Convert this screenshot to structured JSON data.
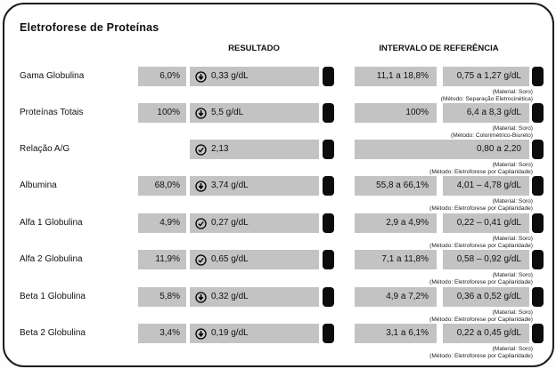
{
  "title": "Eletroforese de Proteínas",
  "columns": {
    "result": "RESULTADO",
    "reference": "INTERVALO DE REFERÊNCIA"
  },
  "colors": {
    "bar_gray": "#c3c3c3",
    "marker_black": "#0c0c0c",
    "card_border": "#1c1c1c"
  },
  "rows": [
    {
      "label": "Gama Globulina",
      "result_percent": "6,0%",
      "result_icon": "down-arrow-circle-icon",
      "result_value": "0,33 g/dL",
      "ref_percent": "11,1 a 18,8%",
      "ref_value": "0,75 a 1,27 g/dL",
      "material": "(Material: Soro)",
      "method": "(Método: Separação Eletrocinética)"
    },
    {
      "label": "Proteínas Totais",
      "result_percent": "100%",
      "result_icon": "down-arrow-circle-icon",
      "result_value": "5,5 g/dL",
      "ref_percent": "100%",
      "ref_value": "6,4 a 8,3 g/dL",
      "material": "(Material: Soro)",
      "method": "(Método: Colorimétrico-Biureto)"
    },
    {
      "label": "Relação A/G",
      "result_percent": null,
      "result_icon": "check-circle-icon",
      "result_value": "2,13",
      "ref_percent": null,
      "ref_value": "0,80 a 2,20",
      "material": "(Material: Soro)",
      "method": "(Método: Eletroforese por Capilaridade)"
    },
    {
      "label": "Albumina",
      "result_percent": "68,0%",
      "result_icon": "down-arrow-circle-icon",
      "result_value": "3,74 g/dL",
      "ref_percent": "55,8 a 66,1%",
      "ref_value": "4,01 – 4,78 g/dL",
      "material": "(Material: Soro)",
      "method": "(Método: Eletroforese por Capilaridade)"
    },
    {
      "label": "Alfa 1 Globulina",
      "result_percent": "4,9%",
      "result_icon": "check-circle-icon",
      "result_value": "0,27 g/dL",
      "ref_percent": "2,9 a 4,9%",
      "ref_value": "0,22 – 0,41 g/dL",
      "material": "(Material: Soro)",
      "method": "(Método: Eletroforese por Capilaridade)"
    },
    {
      "label": "Alfa 2 Globulina",
      "result_percent": "11,9%",
      "result_icon": "check-circle-icon",
      "result_value": "0,65 g/dL",
      "ref_percent": "7,1 a 11,8%",
      "ref_value": "0,58 – 0,92 g/dL",
      "material": "(Material: Soro)",
      "method": "(Método: Eletroforese por Capilaridade)"
    },
    {
      "label": "Beta 1 Globulina",
      "result_percent": "5,8%",
      "result_icon": "down-arrow-circle-icon",
      "result_value": "0,32 g/dL",
      "ref_percent": "4,9 a 7,2%",
      "ref_value": "0,36 a 0,52 g/dL",
      "material": "(Material: Soro)",
      "method": "(Método: Eletroforese por Capilaridade)"
    },
    {
      "label": "Beta 2 Globulina",
      "result_percent": "3,4%",
      "result_icon": "down-arrow-circle-icon",
      "result_value": "0,19 g/dL",
      "ref_percent": "3,1 a 6,1%",
      "ref_value": "0,22 a 0,45 g/dL",
      "material": "(Material: Soro)",
      "method": "(Método: Eletroforese por Capilaridade)"
    }
  ]
}
